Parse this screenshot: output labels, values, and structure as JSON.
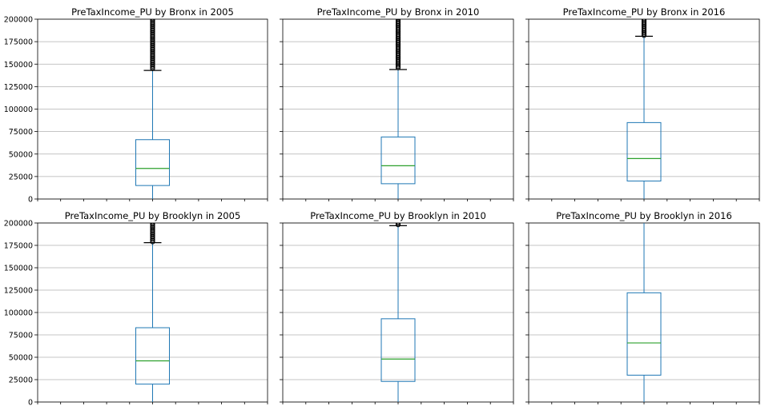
{
  "chart_data": [
    {
      "type": "boxplot",
      "title": "PreTaxIncome_PU by Bronx in 2005",
      "ylim": [
        0,
        200000
      ],
      "yticks": [
        "0",
        "25000",
        "50000",
        "75000",
        "100000",
        "125000",
        "150000",
        "175000",
        "200000"
      ],
      "grid": "horizontal",
      "box": {
        "whisker_low": 0,
        "q1": 15000,
        "median": 34000,
        "q3": 66000,
        "whisker_high": 143000,
        "outliers_from": 145000,
        "outliers_to": 200000
      }
    },
    {
      "type": "boxplot",
      "title": "PreTaxIncome_PU by Bronx in 2010",
      "ylim": [
        0,
        200000
      ],
      "yticks": [
        "0",
        "25000",
        "50000",
        "75000",
        "100000",
        "125000",
        "150000",
        "175000",
        "200000"
      ],
      "grid": "horizontal",
      "box": {
        "whisker_low": 0,
        "q1": 17000,
        "median": 37000,
        "q3": 69000,
        "whisker_high": 144000,
        "outliers_from": 146000,
        "outliers_to": 200000
      }
    },
    {
      "type": "boxplot",
      "title": "PreTaxIncome_PU by Bronx in 2016",
      "ylim": [
        0,
        200000
      ],
      "yticks": [
        "0",
        "25000",
        "50000",
        "75000",
        "100000",
        "125000",
        "150000",
        "175000",
        "200000"
      ],
      "grid": "horizontal",
      "box": {
        "whisker_low": 0,
        "q1": 20000,
        "median": 45000,
        "q3": 85000,
        "whisker_high": 181000,
        "outliers_from": 182000,
        "outliers_to": 200000
      }
    },
    {
      "type": "boxplot",
      "title": "PreTaxIncome_PU by Brooklyn in 2005",
      "ylim": [
        0,
        200000
      ],
      "yticks": [
        "0",
        "25000",
        "50000",
        "75000",
        "100000",
        "125000",
        "150000",
        "175000",
        "200000"
      ],
      "grid": "horizontal",
      "box": {
        "whisker_low": 0,
        "q1": 20000,
        "median": 46000,
        "q3": 83000,
        "whisker_high": 178000,
        "outliers_from": 179000,
        "outliers_to": 200000
      }
    },
    {
      "type": "boxplot",
      "title": "PreTaxIncome_PU by Brooklyn in 2010",
      "ylim": [
        0,
        200000
      ],
      "yticks": [
        "0",
        "25000",
        "50000",
        "75000",
        "100000",
        "125000",
        "150000",
        "175000",
        "200000"
      ],
      "grid": "horizontal",
      "box": {
        "whisker_low": 0,
        "q1": 23000,
        "median": 48000,
        "q3": 93000,
        "whisker_high": 197000,
        "outliers_from": 198000,
        "outliers_to": 200000
      }
    },
    {
      "type": "boxplot",
      "title": "PreTaxIncome_PU by Brooklyn in 2016",
      "ylim": [
        0,
        200000
      ],
      "yticks": [
        "0",
        "25000",
        "50000",
        "75000",
        "100000",
        "125000",
        "150000",
        "175000",
        "200000"
      ],
      "grid": "horizontal",
      "box": {
        "whisker_low": 0,
        "q1": 30000,
        "median": 66000,
        "q3": 122000,
        "whisker_high": 200000,
        "outliers_from": null,
        "outliers_to": null
      }
    }
  ],
  "colors": {
    "box": "#1f77b4",
    "median": "#2ca02c",
    "grid": "#b0b0b0",
    "axis": "#000000",
    "outlier": "#000000"
  }
}
